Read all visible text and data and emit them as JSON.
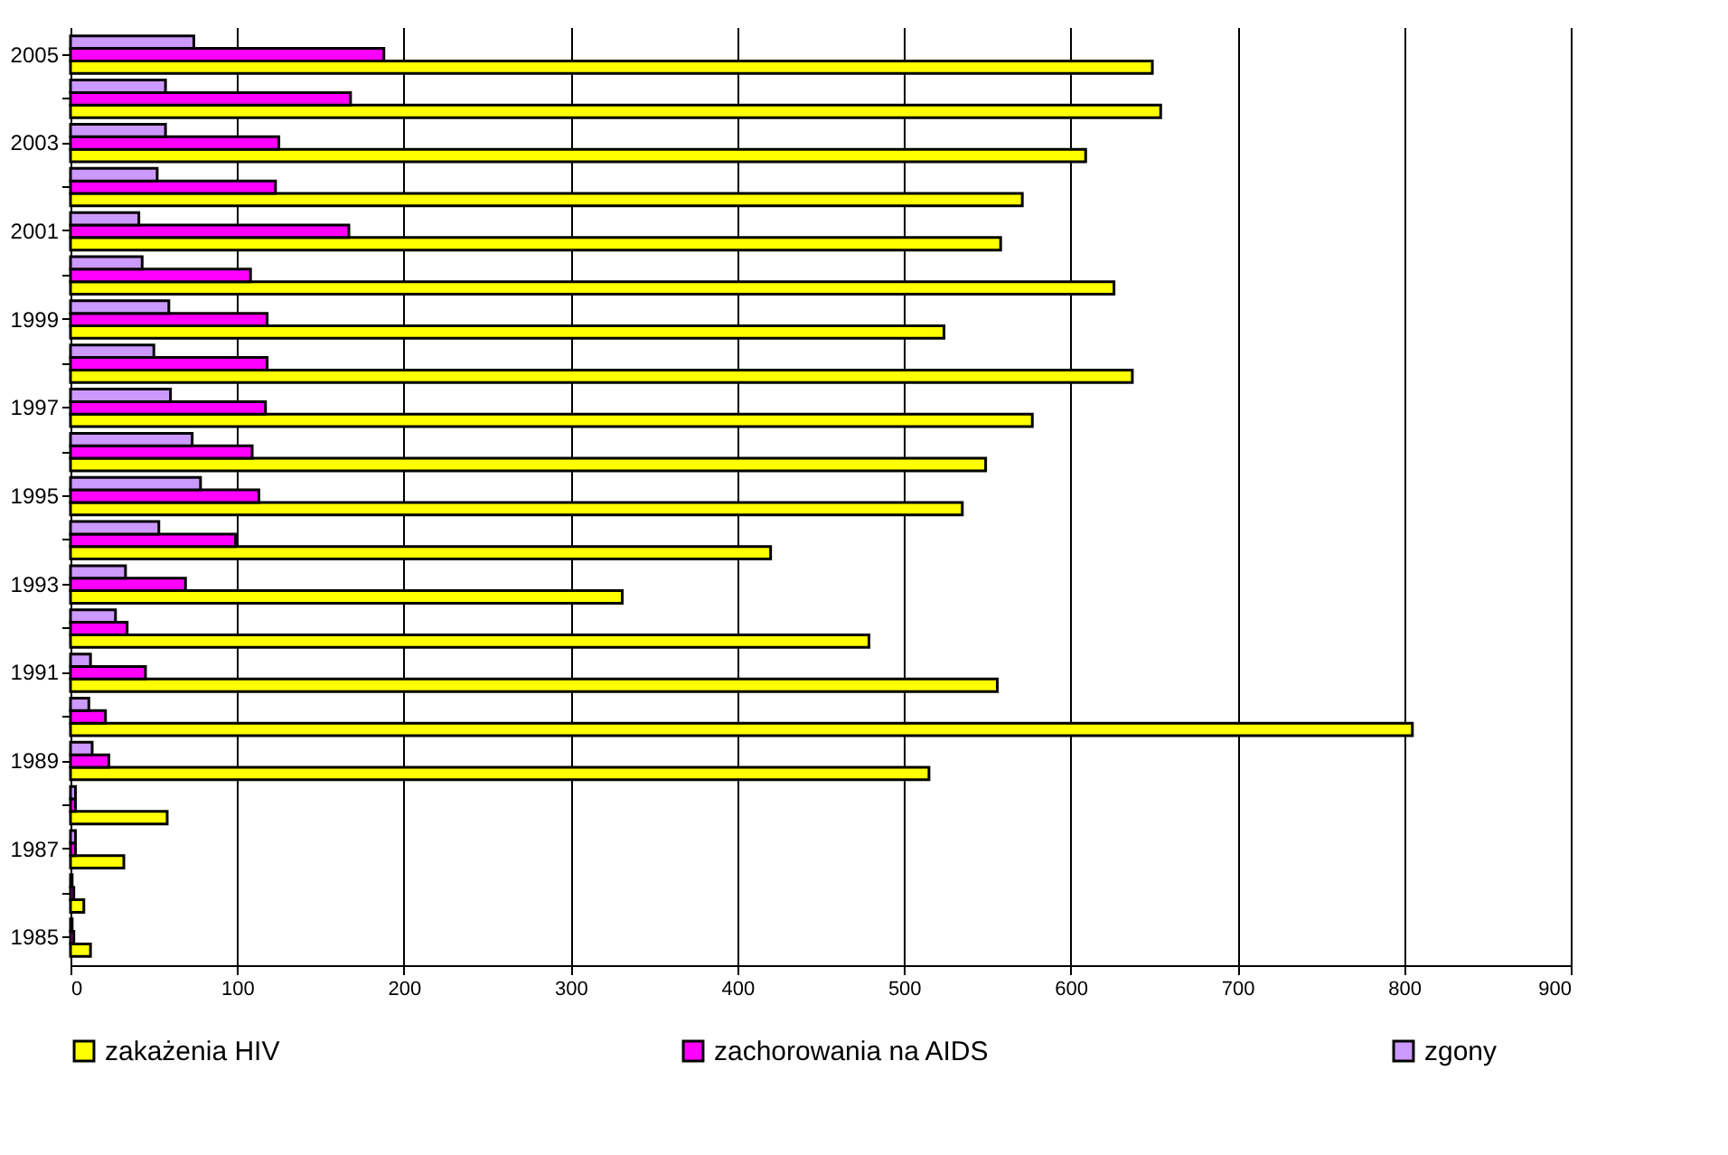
{
  "chart_data": {
    "type": "bar",
    "orientation": "horizontal",
    "categories": [
      "2005",
      null,
      "2003",
      null,
      "2001",
      null,
      "1999",
      null,
      "1997",
      null,
      "1995",
      null,
      "1993",
      null,
      "1991",
      null,
      "1989",
      null,
      "1987",
      null,
      "1985"
    ],
    "series": [
      {
        "name": "zakażenia HIV",
        "color": "#ffff00",
        "values": [
          649,
          654,
          609,
          571,
          558,
          626,
          524,
          637,
          577,
          549,
          535,
          420,
          331,
          479,
          556,
          805,
          515,
          58,
          32,
          8,
          12
        ]
      },
      {
        "name": "zachorowania na AIDS",
        "color": "#ff00ff",
        "values": [
          188,
          168,
          125,
          123,
          167,
          108,
          118,
          118,
          117,
          109,
          113,
          99,
          69,
          34,
          45,
          21,
          23,
          3,
          3,
          2,
          2
        ]
      },
      {
        "name": "zgony",
        "color": "#cc99ff",
        "values": [
          74,
          57,
          57,
          52,
          41,
          43,
          59,
          50,
          60,
          73,
          78,
          53,
          33,
          27,
          12,
          11,
          13,
          3,
          3,
          1,
          1
        ]
      }
    ],
    "xlim": [
      0,
      900
    ],
    "xticks": [
      0,
      100,
      200,
      300,
      400,
      500,
      600,
      700,
      800,
      900
    ],
    "grid": "x",
    "legend": "bottom"
  }
}
